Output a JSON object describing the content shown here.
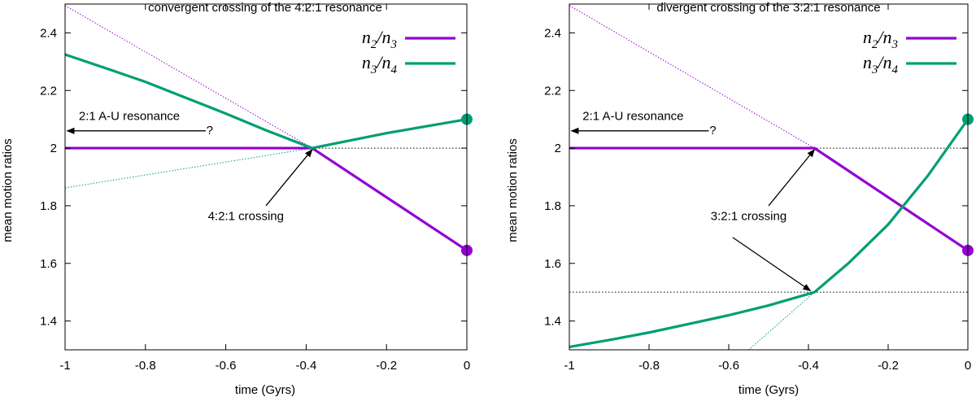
{
  "chart_data": [
    {
      "type": "line",
      "title": "convergent crossing of the 4:2:1 resonance",
      "xlabel": "time (Gyrs)",
      "ylabel": "mean motion ratios",
      "xlim": [
        -1,
        0
      ],
      "ylim": [
        1.3,
        2.5
      ],
      "xticks": [
        -1,
        -0.8,
        -0.6,
        -0.4,
        -0.2,
        0
      ],
      "xtick_labels": [
        "-1",
        "-0.8",
        "-0.6",
        "-0.4",
        "-0.2",
        "0"
      ],
      "yticks": [
        1.4,
        1.6,
        1.8,
        2,
        2.2,
        2.4
      ],
      "ytick_labels": [
        "1.4",
        "1.6",
        "1.8",
        "2",
        "2.2",
        "2.4"
      ],
      "legend_position": "top-right",
      "series": [
        {
          "name": "n2/n3",
          "legend_main": "n",
          "legend_sub1": "2",
          "legend_slash": "/n",
          "legend_sub2": "3",
          "color": "#9400d3",
          "x": [
            -1,
            -0.385,
            0
          ],
          "y": [
            2.0,
            2.0,
            1.645
          ],
          "endpoint": [
            0,
            1.645
          ]
        },
        {
          "name": "n3/n4",
          "legend_main": "n",
          "legend_sub1": "3",
          "legend_slash": "/n",
          "legend_sub2": "4",
          "color": "#009e73",
          "x": [
            -1,
            -0.9,
            -0.8,
            -0.7,
            -0.6,
            -0.5,
            -0.385,
            -0.2,
            0
          ],
          "y": [
            2.325,
            2.278,
            2.23,
            2.175,
            2.12,
            2.062,
            2.0,
            2.052,
            2.1
          ],
          "endpoint": [
            0,
            2.1
          ]
        }
      ],
      "guides": [
        {
          "kind": "hline",
          "y": 2.0,
          "color": "#000000"
        },
        {
          "kind": "dotted",
          "x": [
            -1,
            -0.385
          ],
          "y": [
            2.495,
            2.0
          ],
          "color": "#9400d3"
        },
        {
          "kind": "dotted",
          "x": [
            -1,
            -0.385
          ],
          "y": [
            1.862,
            2.0
          ],
          "color": "#009e73"
        }
      ],
      "annotations": [
        {
          "text": "2:1 A-U resonance",
          "x": -0.84,
          "y": 2.098
        },
        {
          "text": "?",
          "x": -0.64,
          "y": 2.048
        },
        {
          "text": "4:2:1 crossing",
          "x": -0.55,
          "y": 1.75
        }
      ],
      "arrows": [
        {
          "from": [
            -0.65,
            2.06
          ],
          "to": [
            -0.995,
            2.06
          ]
        },
        {
          "from": [
            -0.5,
            1.8
          ],
          "to": [
            -0.385,
            1.995
          ]
        }
      ]
    },
    {
      "type": "line",
      "title": "divergent crossing of the 3:2:1 resonance",
      "xlabel": "time (Gyrs)",
      "ylabel": "mean motion ratios",
      "xlim": [
        -1,
        0
      ],
      "ylim": [
        1.3,
        2.5
      ],
      "xticks": [
        -1,
        -0.8,
        -0.6,
        -0.4,
        -0.2,
        0
      ],
      "xtick_labels": [
        "-1",
        "-0.8",
        "-0.6",
        "-0.4",
        "-0.2",
        "0"
      ],
      "yticks": [
        1.4,
        1.6,
        1.8,
        2,
        2.2,
        2.4
      ],
      "ytick_labels": [
        "1.4",
        "1.6",
        "1.8",
        "2",
        "2.2",
        "2.4"
      ],
      "legend_position": "top-right",
      "series": [
        {
          "name": "n2/n3",
          "legend_main": "n",
          "legend_sub1": "2",
          "legend_slash": "/n",
          "legend_sub2": "3",
          "color": "#9400d3",
          "x": [
            -1,
            -0.385,
            0
          ],
          "y": [
            2.0,
            2.0,
            1.645
          ],
          "endpoint": [
            0,
            1.645
          ]
        },
        {
          "name": "n3/n4",
          "legend_main": "n",
          "legend_sub1": "3",
          "legend_slash": "/n",
          "legend_sub2": "4",
          "color": "#009e73",
          "x": [
            -1,
            -0.9,
            -0.8,
            -0.7,
            -0.6,
            -0.5,
            -0.385,
            -0.3,
            -0.2,
            -0.1,
            0
          ],
          "y": [
            1.31,
            1.334,
            1.36,
            1.39,
            1.42,
            1.454,
            1.5,
            1.6,
            1.735,
            1.905,
            2.1
          ],
          "endpoint": [
            0,
            2.1
          ]
        }
      ],
      "guides": [
        {
          "kind": "hline",
          "y": 2.0,
          "color": "#000000"
        },
        {
          "kind": "hline",
          "y": 1.5,
          "color": "#000000"
        },
        {
          "kind": "dotted",
          "x": [
            -1,
            -0.385
          ],
          "y": [
            2.495,
            2.0
          ],
          "color": "#9400d3"
        },
        {
          "kind": "dotted",
          "x": [
            -0.55,
            -0.385
          ],
          "y": [
            1.3,
            1.5
          ],
          "color": "#009e73"
        }
      ],
      "annotations": [
        {
          "text": "2:1 A-U resonance",
          "x": -0.84,
          "y": 2.098
        },
        {
          "text": "?",
          "x": -0.64,
          "y": 2.048
        },
        {
          "text": "3:2:1 crossing",
          "x": -0.55,
          "y": 1.75
        }
      ],
      "arrows": [
        {
          "from": [
            -0.65,
            2.06
          ],
          "to": [
            -0.995,
            2.06
          ]
        },
        {
          "from": [
            -0.5,
            1.8
          ],
          "to": [
            -0.385,
            1.995
          ]
        },
        {
          "from": [
            -0.59,
            1.69
          ],
          "to": [
            -0.395,
            1.505
          ]
        }
      ]
    }
  ]
}
